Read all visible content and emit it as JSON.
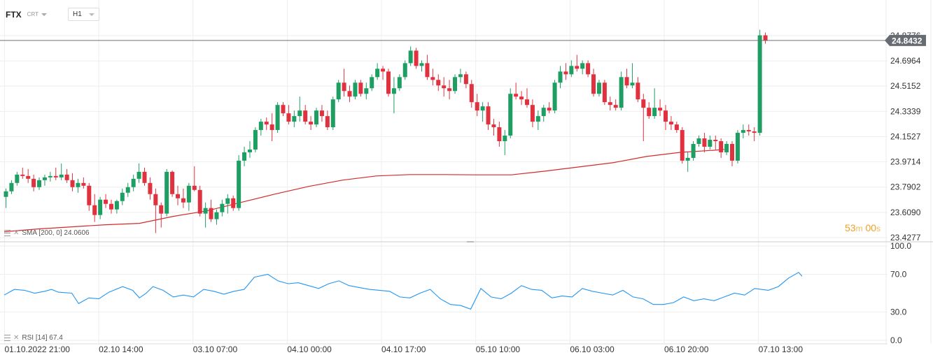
{
  "header": {
    "symbol": "FTX",
    "instrument_type": "CRT",
    "timeframe": "H1"
  },
  "indicators": {
    "sma": {
      "label": "SMA [200, 0] 24.0606",
      "color": "#d42a2a"
    },
    "rsi": {
      "label": "RSI [14] 67.4",
      "color": "#2196f3"
    }
  },
  "countdown": {
    "minutes": "53",
    "min_unit": "m",
    "seconds": "00",
    "sec_unit": "s"
  },
  "chart_data": {
    "type": "candlestick",
    "price_axis": {
      "ticks": [
        "24.8776",
        "24.6964",
        "24.5152",
        "24.3339",
        "24.1527",
        "23.9714",
        "23.7902",
        "23.6090",
        "23.4277"
      ],
      "current_price": "24.8432",
      "current_price_value": 24.8432,
      "ylim": [
        23.4277,
        24.8776
      ]
    },
    "rsi_axis": {
      "ticks": [
        "100.0",
        "70.0",
        "30.0",
        "0.0"
      ],
      "ylim": [
        0,
        100
      ]
    },
    "time_axis": {
      "labels": [
        "01.10.2022  21:00",
        "02.10  14:00",
        "03.10  07:00",
        "04.10  00:00",
        "04.10  17:00",
        "05.10  10:00",
        "06.10  03:00",
        "06.10  20:00",
        "07.10  13:00"
      ],
      "label_bar_index": [
        0,
        17,
        34,
        51,
        68,
        85,
        102,
        119,
        136
      ]
    },
    "candles": [
      [
        23.72,
        23.78,
        23.64,
        23.76
      ],
      [
        23.76,
        23.84,
        23.74,
        23.82
      ],
      [
        23.82,
        23.9,
        23.8,
        23.88
      ],
      [
        23.88,
        23.93,
        23.85,
        23.87
      ],
      [
        23.87,
        23.92,
        23.82,
        23.85
      ],
      [
        23.85,
        23.88,
        23.76,
        23.79
      ],
      [
        23.79,
        23.86,
        23.77,
        23.84
      ],
      [
        23.84,
        23.88,
        23.8,
        23.86
      ],
      [
        23.86,
        23.9,
        23.83,
        23.87
      ],
      [
        23.87,
        23.93,
        23.84,
        23.86
      ],
      [
        23.86,
        23.96,
        23.84,
        23.88
      ],
      [
        23.88,
        23.92,
        23.82,
        23.84
      ],
      [
        23.84,
        23.89,
        23.76,
        23.79
      ],
      [
        23.79,
        23.85,
        23.75,
        23.82
      ],
      [
        23.82,
        23.86,
        23.78,
        23.8
      ],
      [
        23.8,
        23.82,
        23.62,
        23.66
      ],
      [
        23.66,
        23.74,
        23.54,
        23.59
      ],
      [
        23.59,
        23.72,
        23.56,
        23.7
      ],
      [
        23.7,
        23.74,
        23.64,
        23.67
      ],
      [
        23.67,
        23.7,
        23.6,
        23.63
      ],
      [
        23.63,
        23.7,
        23.6,
        23.69
      ],
      [
        23.69,
        23.78,
        23.66,
        23.75
      ],
      [
        23.75,
        23.82,
        23.72,
        23.79
      ],
      [
        23.79,
        23.88,
        23.76,
        23.85
      ],
      [
        23.85,
        23.96,
        23.82,
        23.9
      ],
      [
        23.9,
        23.93,
        23.8,
        23.82
      ],
      [
        23.82,
        23.86,
        23.7,
        23.74
      ],
      [
        23.74,
        23.78,
        23.46,
        23.66
      ],
      [
        23.66,
        23.68,
        23.5,
        23.6
      ],
      [
        23.6,
        23.92,
        23.58,
        23.9
      ],
      [
        23.9,
        23.91,
        23.72,
        23.74
      ],
      [
        23.74,
        23.8,
        23.66,
        23.71
      ],
      [
        23.71,
        23.78,
        23.64,
        23.68
      ],
      [
        23.68,
        23.82,
        23.62,
        23.8
      ],
      [
        23.8,
        23.94,
        23.76,
        23.77
      ],
      [
        23.77,
        23.8,
        23.58,
        23.6
      ],
      [
        23.6,
        23.68,
        23.5,
        23.64
      ],
      [
        23.64,
        23.7,
        23.54,
        23.56
      ],
      [
        23.56,
        23.63,
        23.52,
        23.61
      ],
      [
        23.61,
        23.7,
        23.58,
        23.67
      ],
      [
        23.67,
        23.74,
        23.6,
        23.71
      ],
      [
        23.71,
        23.73,
        23.62,
        23.64
      ],
      [
        23.64,
        24.02,
        23.62,
        23.98
      ],
      [
        23.98,
        24.08,
        23.94,
        24.04
      ],
      [
        24.04,
        24.12,
        24.0,
        24.06
      ],
      [
        24.06,
        24.22,
        24.04,
        24.2
      ],
      [
        24.2,
        24.28,
        24.16,
        24.26
      ],
      [
        24.26,
        24.29,
        24.2,
        24.24
      ],
      [
        24.24,
        24.32,
        24.12,
        24.2
      ],
      [
        24.2,
        24.4,
        24.18,
        24.38
      ],
      [
        24.38,
        24.4,
        24.3,
        24.32
      ],
      [
        24.32,
        24.38,
        24.24,
        24.26
      ],
      [
        24.26,
        24.34,
        24.22,
        24.3
      ],
      [
        24.3,
        24.44,
        24.26,
        24.34
      ],
      [
        24.34,
        24.38,
        24.24,
        24.26
      ],
      [
        24.26,
        24.3,
        24.2,
        24.24
      ],
      [
        24.24,
        24.36,
        24.22,
        24.34
      ],
      [
        24.34,
        24.38,
        24.26,
        24.3
      ],
      [
        24.3,
        24.34,
        24.2,
        24.22
      ],
      [
        24.22,
        24.44,
        24.2,
        24.42
      ],
      [
        24.42,
        24.56,
        24.4,
        24.54
      ],
      [
        24.54,
        24.64,
        24.44,
        24.48
      ],
      [
        24.48,
        24.52,
        24.4,
        24.44
      ],
      [
        24.44,
        24.56,
        24.42,
        24.54
      ],
      [
        24.54,
        24.56,
        24.44,
        24.46
      ],
      [
        24.46,
        24.54,
        24.42,
        24.5
      ],
      [
        24.5,
        24.6,
        24.48,
        24.58
      ],
      [
        24.58,
        24.68,
        24.56,
        24.64
      ],
      [
        24.64,
        24.66,
        24.56,
        24.62
      ],
      [
        24.62,
        24.64,
        24.44,
        24.46
      ],
      [
        24.46,
        24.58,
        24.32,
        24.5
      ],
      [
        24.5,
        24.6,
        24.48,
        24.58
      ],
      [
        24.58,
        24.7,
        24.56,
        24.68
      ],
      [
        24.68,
        24.8,
        24.66,
        24.77
      ],
      [
        24.77,
        24.79,
        24.64,
        24.66
      ],
      [
        24.66,
        24.7,
        24.62,
        24.68
      ],
      [
        24.68,
        24.74,
        24.56,
        24.58
      ],
      [
        24.58,
        24.64,
        24.52,
        24.56
      ],
      [
        24.56,
        24.6,
        24.48,
        24.52
      ],
      [
        24.52,
        24.58,
        24.44,
        24.5
      ],
      [
        24.5,
        24.56,
        24.42,
        24.48
      ],
      [
        24.48,
        24.6,
        24.46,
        24.58
      ],
      [
        24.58,
        24.64,
        24.54,
        24.6
      ],
      [
        24.6,
        24.62,
        24.5,
        24.53
      ],
      [
        24.53,
        24.56,
        24.36,
        24.4
      ],
      [
        24.4,
        24.46,
        24.3,
        24.34
      ],
      [
        24.34,
        24.4,
        24.26,
        24.37
      ],
      [
        24.37,
        24.4,
        24.2,
        24.24
      ],
      [
        24.24,
        24.28,
        24.16,
        24.22
      ],
      [
        24.22,
        24.26,
        24.08,
        24.12
      ],
      [
        24.12,
        24.2,
        24.02,
        24.16
      ],
      [
        24.16,
        24.5,
        24.14,
        24.46
      ],
      [
        24.46,
        24.54,
        24.42,
        24.44
      ],
      [
        24.44,
        24.48,
        24.38,
        24.42
      ],
      [
        24.42,
        24.5,
        24.36,
        24.38
      ],
      [
        24.38,
        24.42,
        24.22,
        24.26
      ],
      [
        24.26,
        24.34,
        24.2,
        24.3
      ],
      [
        24.3,
        24.38,
        24.26,
        24.36
      ],
      [
        24.36,
        24.4,
        24.32,
        24.34
      ],
      [
        24.34,
        24.56,
        24.32,
        24.54
      ],
      [
        24.54,
        24.66,
        24.5,
        24.62
      ],
      [
        24.62,
        24.68,
        24.56,
        24.6
      ],
      [
        24.6,
        24.7,
        24.58,
        24.66
      ],
      [
        24.66,
        24.74,
        24.62,
        24.64
      ],
      [
        24.64,
        24.7,
        24.6,
        24.68
      ],
      [
        24.68,
        24.7,
        24.58,
        24.6
      ],
      [
        24.6,
        24.64,
        24.44,
        24.46
      ],
      [
        24.46,
        24.56,
        24.44,
        24.54
      ],
      [
        24.54,
        24.56,
        24.38,
        24.4
      ],
      [
        24.4,
        24.44,
        24.34,
        24.38
      ],
      [
        24.38,
        24.42,
        24.34,
        24.36
      ],
      [
        24.36,
        24.62,
        24.34,
        24.58
      ],
      [
        24.58,
        24.64,
        24.5,
        24.52
      ],
      [
        24.52,
        24.68,
        24.5,
        24.54
      ],
      [
        24.54,
        24.58,
        24.4,
        24.42
      ],
      [
        24.42,
        24.46,
        24.12,
        24.36
      ],
      [
        24.36,
        24.4,
        24.28,
        24.3
      ],
      [
        24.3,
        24.5,
        24.28,
        24.36
      ],
      [
        24.36,
        24.42,
        24.3,
        24.34
      ],
      [
        24.34,
        24.38,
        24.2,
        24.26
      ],
      [
        24.26,
        24.3,
        24.2,
        24.24
      ],
      [
        24.24,
        24.26,
        24.18,
        24.2
      ],
      [
        24.2,
        24.22,
        23.96,
        23.98
      ],
      [
        23.98,
        24.04,
        23.9,
        24.0
      ],
      [
        24.0,
        24.12,
        23.98,
        24.1
      ],
      [
        24.1,
        24.16,
        24.08,
        24.14
      ],
      [
        24.14,
        24.18,
        24.04,
        24.08
      ],
      [
        24.08,
        24.16,
        24.06,
        24.13
      ],
      [
        24.13,
        24.16,
        24.06,
        24.12
      ],
      [
        24.12,
        24.14,
        24.0,
        24.04
      ],
      [
        24.04,
        24.12,
        24.02,
        24.1
      ],
      [
        24.1,
        24.12,
        23.94,
        23.98
      ],
      [
        23.98,
        24.2,
        23.96,
        24.18
      ],
      [
        24.18,
        24.24,
        24.14,
        24.2
      ],
      [
        24.2,
        24.24,
        24.16,
        24.19
      ],
      [
        24.19,
        24.22,
        24.12,
        24.18
      ],
      [
        24.18,
        24.92,
        24.16,
        24.88
      ],
      [
        24.88,
        24.9,
        24.82,
        24.84
      ]
    ],
    "sma": [
      [
        0,
        23.47
      ],
      [
        10,
        23.49
      ],
      [
        20,
        23.505
      ],
      [
        30,
        23.52
      ],
      [
        40,
        23.53
      ],
      [
        50,
        23.58
      ],
      [
        60,
        23.62
      ],
      [
        70,
        23.68
      ],
      [
        80,
        23.74
      ],
      [
        90,
        23.795
      ],
      [
        100,
        23.84
      ],
      [
        110,
        23.87
      ],
      [
        120,
        23.88
      ],
      [
        130,
        23.88
      ],
      [
        140,
        23.878
      ],
      [
        150,
        23.878
      ],
      [
        160,
        23.905
      ],
      [
        170,
        23.935
      ],
      [
        180,
        23.965
      ],
      [
        190,
        24.01
      ],
      [
        200,
        24.04
      ],
      [
        210,
        24.055
      ],
      [
        213,
        24.061
      ]
    ],
    "rsi": [
      [
        0,
        48
      ],
      [
        3,
        54
      ],
      [
        6,
        53
      ],
      [
        9,
        50
      ],
      [
        12,
        52
      ],
      [
        14,
        54
      ],
      [
        16,
        51
      ],
      [
        20,
        50
      ],
      [
        22,
        39
      ],
      [
        25,
        45
      ],
      [
        28,
        44
      ],
      [
        31,
        51
      ],
      [
        35,
        57
      ],
      [
        38,
        53
      ],
      [
        40,
        45
      ],
      [
        42,
        50
      ],
      [
        44,
        57
      ],
      [
        47,
        53
      ],
      [
        50,
        46
      ],
      [
        53,
        48
      ],
      [
        56,
        46
      ],
      [
        59,
        54
      ],
      [
        62,
        52
      ],
      [
        65,
        49
      ],
      [
        68,
        52
      ],
      [
        71,
        54
      ],
      [
        74,
        67
      ],
      [
        78,
        70
      ],
      [
        81,
        63
      ],
      [
        84,
        60
      ],
      [
        87,
        61
      ],
      [
        90,
        58
      ],
      [
        93,
        55
      ],
      [
        96,
        60
      ],
      [
        99,
        63
      ],
      [
        102,
        58
      ],
      [
        105,
        56
      ],
      [
        108,
        54
      ],
      [
        111,
        53
      ],
      [
        114,
        52
      ],
      [
        117,
        46
      ],
      [
        120,
        45
      ],
      [
        123,
        50
      ],
      [
        126,
        54
      ],
      [
        129,
        44
      ],
      [
        132,
        38
      ],
      [
        135,
        37
      ],
      [
        138,
        33
      ],
      [
        141,
        55
      ],
      [
        144,
        46
      ],
      [
        147,
        44
      ],
      [
        150,
        50
      ],
      [
        153,
        58
      ],
      [
        156,
        54
      ],
      [
        159,
        53
      ],
      [
        162,
        45
      ],
      [
        165,
        47
      ],
      [
        168,
        46
      ],
      [
        171,
        55
      ],
      [
        174,
        52
      ],
      [
        177,
        50
      ],
      [
        180,
        48
      ],
      [
        183,
        53
      ],
      [
        186,
        46
      ],
      [
        189,
        44
      ],
      [
        192,
        38
      ],
      [
        195,
        38
      ],
      [
        198,
        40
      ],
      [
        201,
        46
      ],
      [
        204,
        42
      ],
      [
        207,
        44
      ],
      [
        210,
        42
      ],
      [
        213,
        46
      ],
      [
        216,
        50
      ],
      [
        219,
        48
      ],
      [
        222,
        55
      ],
      [
        226,
        53
      ],
      [
        229,
        57
      ],
      [
        232,
        66
      ],
      [
        235,
        72
      ],
      [
        236,
        68
      ]
    ]
  }
}
